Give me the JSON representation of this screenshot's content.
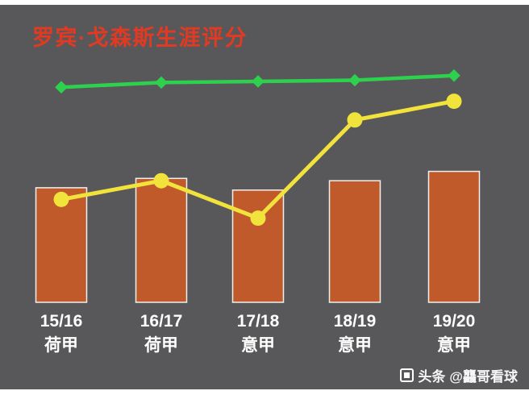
{
  "page": {
    "background": "#58585a",
    "frame": "#ffffff"
  },
  "title": {
    "text": "罗宾·戈森斯生涯评分",
    "color": "#e23a22"
  },
  "watermark": {
    "icon": "toutiao-logo",
    "platform": "头条",
    "account": "@龘哥看球"
  },
  "chart_data": {
    "type": "bar+line combo",
    "title": "罗宾·戈森斯生涯评分",
    "xlabel": "",
    "ylabel": "",
    "ylim": [
      0,
      10
    ],
    "grid": false,
    "legend": false,
    "categories": [
      {
        "season": "15/16",
        "league": "荷甲"
      },
      {
        "season": "16/17",
        "league": "荷甲"
      },
      {
        "season": "17/18",
        "league": "意甲"
      },
      {
        "season": "18/19",
        "league": "意甲"
      },
      {
        "season": "19/20",
        "league": "意甲"
      }
    ],
    "series": [
      {
        "name": "season-bars",
        "type": "bar",
        "color": "#c05a2b",
        "stroke": "#f0f0f0",
        "values": [
          4.9,
          5.3,
          4.8,
          5.2,
          5.6
        ]
      },
      {
        "name": "green-series",
        "type": "line",
        "marker": "diamond",
        "color": "#2ed14e",
        "values": [
          9.2,
          9.4,
          9.45,
          9.5,
          9.7
        ]
      },
      {
        "name": "yellow-series",
        "type": "line",
        "marker": "circle",
        "color": "#f2e33c",
        "values": [
          4.4,
          5.2,
          3.6,
          7.8,
          8.6
        ]
      }
    ]
  }
}
